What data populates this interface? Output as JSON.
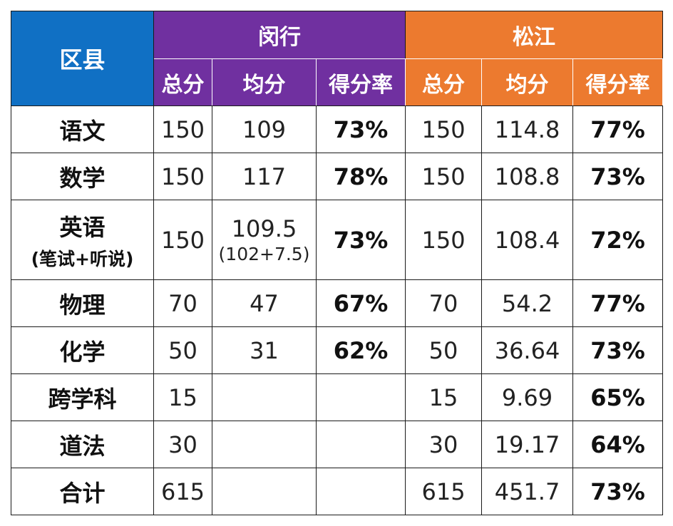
{
  "header": {
    "district_label": "区县",
    "groups": [
      {
        "name": "闵行",
        "color": "#7030a0"
      },
      {
        "name": "松江",
        "color": "#ec7a2f"
      }
    ],
    "district_color": "#1070c4",
    "subcolumns": [
      "总分",
      "均分",
      "得分率"
    ]
  },
  "rows": [
    {
      "subject": "语文",
      "minhang": {
        "total": "150",
        "avg": "109",
        "rate": "73%"
      },
      "songjiang": {
        "total": "150",
        "avg": "114.8",
        "rate": "77%"
      }
    },
    {
      "subject": "数学",
      "minhang": {
        "total": "150",
        "avg": "117",
        "rate": "78%"
      },
      "songjiang": {
        "total": "150",
        "avg": "108.8",
        "rate": "73%"
      }
    },
    {
      "subject": "英语",
      "subject_note": "(笔试+听说)",
      "minhang": {
        "total": "150",
        "avg": "109.5",
        "avg_note": "(102+7.5)",
        "rate": "73%"
      },
      "songjiang": {
        "total": "150",
        "avg": "108.4",
        "rate": "72%"
      }
    },
    {
      "subject": "物理",
      "minhang": {
        "total": "70",
        "avg": "47",
        "rate": "67%"
      },
      "songjiang": {
        "total": "70",
        "avg": "54.2",
        "rate": "77%"
      }
    },
    {
      "subject": "化学",
      "minhang": {
        "total": "50",
        "avg": "31",
        "rate": "62%"
      },
      "songjiang": {
        "total": "50",
        "avg": "36.64",
        "rate": "73%"
      }
    },
    {
      "subject": "跨学科",
      "minhang": {
        "total": "15",
        "avg": "",
        "rate": ""
      },
      "songjiang": {
        "total": "15",
        "avg": "9.69",
        "rate": "65%"
      }
    },
    {
      "subject": "道法",
      "minhang": {
        "total": "30",
        "avg": "",
        "rate": ""
      },
      "songjiang": {
        "total": "30",
        "avg": "19.17",
        "rate": "64%"
      }
    },
    {
      "subject": "合计",
      "minhang": {
        "total": "615",
        "avg": "",
        "rate": ""
      },
      "songjiang": {
        "total": "615",
        "avg": "451.7",
        "rate": "73%"
      }
    }
  ]
}
